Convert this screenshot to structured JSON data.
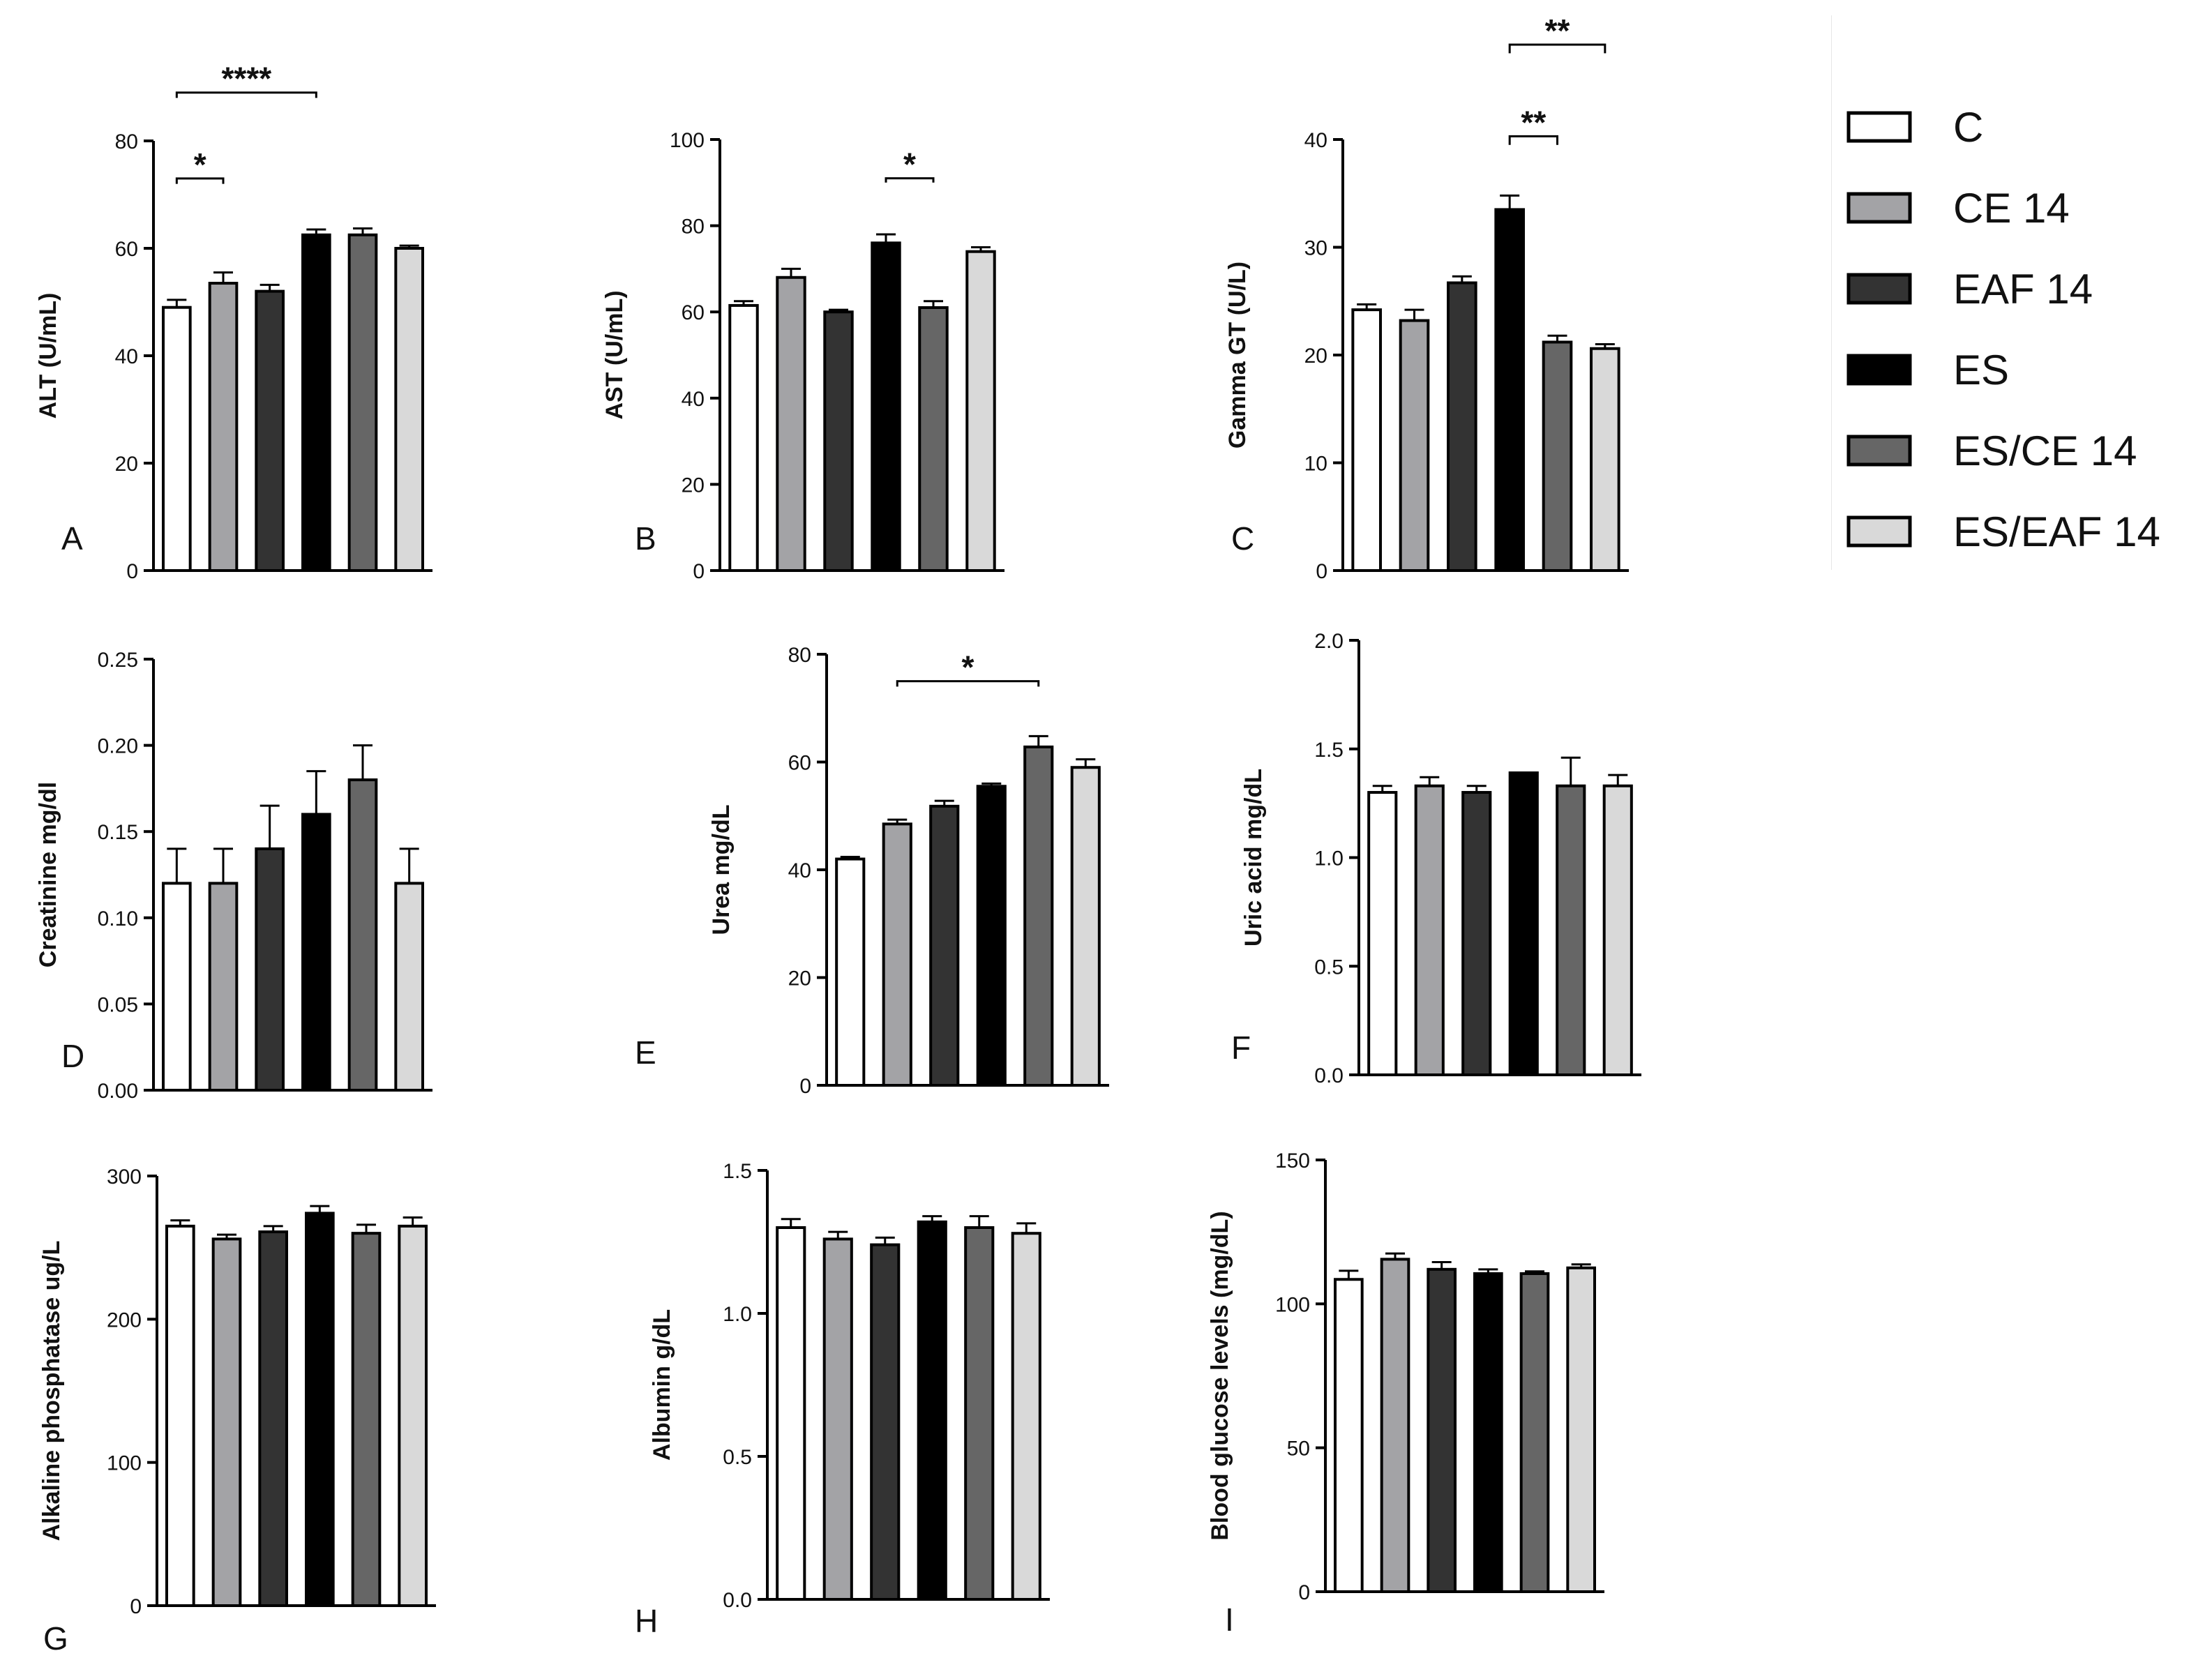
{
  "groups": [
    "C",
    "CE 14",
    "EAF 14",
    "ES",
    "ES/CE 14",
    "ES/EAF 14"
  ],
  "colors": {
    "C": "#ffffff",
    "CE 14": "#a3a3a6",
    "EAF 14": "#333333",
    "ES": "#000000",
    "ES/CE 14": "#666666",
    "ES/EAF 14": "#d9d9d9"
  },
  "chart_data": [
    {
      "panel": "A",
      "type": "bar",
      "ylabel": "ALT (U/mL)",
      "ylim": [
        0,
        80
      ],
      "yticks": [
        "0",
        "20",
        "40",
        "60",
        "80"
      ],
      "ytick_values": [
        0,
        20,
        40,
        60,
        80
      ],
      "values": [
        49,
        53.5,
        52,
        62.5,
        62.5,
        60
      ],
      "errors": [
        1.4,
        2,
        1.2,
        1,
        1.2,
        0.5
      ],
      "significance": [
        {
          "from": 0,
          "to": 1,
          "label": "*",
          "y": 72,
          "top": 73
        },
        {
          "from": 0,
          "to": 3,
          "label": "****",
          "y": 88,
          "top": 89
        }
      ]
    },
    {
      "panel": "B",
      "type": "bar",
      "ylabel": "AST (U/mL)",
      "ylim": [
        0,
        100
      ],
      "yticks": [
        "0",
        "20",
        "40",
        "60",
        "80",
        "100"
      ],
      "ytick_values": [
        0,
        20,
        40,
        60,
        80,
        100
      ],
      "values": [
        61.5,
        68,
        60,
        76,
        61,
        74
      ],
      "errors": [
        1,
        2,
        0.5,
        2,
        1.5,
        1
      ],
      "significance": [
        {
          "from": 3,
          "to": 4,
          "label": "*",
          "y": 90,
          "top": 91
        }
      ]
    },
    {
      "panel": "C",
      "type": "bar",
      "ylabel": "Gamma GT (U/L)",
      "ylim": [
        0,
        40
      ],
      "yticks": [
        "0",
        "10",
        "20",
        "30",
        "40"
      ],
      "ytick_values": [
        0,
        10,
        20,
        30,
        40
      ],
      "values": [
        24.2,
        23.2,
        26.7,
        33.5,
        21.2,
        20.6
      ],
      "errors": [
        0.5,
        1,
        0.6,
        1.3,
        0.6,
        0.4
      ],
      "significance": [
        {
          "from": 3,
          "to": 4,
          "label": "**",
          "y": 39.5,
          "top": 40.3
        },
        {
          "from": 3,
          "to": 5,
          "label": "**",
          "y": 48,
          "top": 48.8
        }
      ]
    },
    {
      "panel": "D",
      "type": "bar",
      "ylabel": "Creatinine mg/dl",
      "ylim": [
        0,
        0.25
      ],
      "yticks": [
        "0.00",
        "0.05",
        "0.10",
        "0.15",
        "0.20",
        "0.25"
      ],
      "ytick_values": [
        0,
        0.05,
        0.1,
        0.15,
        0.2,
        0.25
      ],
      "values": [
        0.12,
        0.12,
        0.14,
        0.16,
        0.18,
        0.12
      ],
      "errors": [
        0.02,
        0.02,
        0.025,
        0.025,
        0.02,
        0.02
      ],
      "significance": []
    },
    {
      "panel": "E",
      "type": "bar",
      "ylabel": "Urea mg/dL",
      "ylim": [
        0,
        80
      ],
      "yticks": [
        "0",
        "20",
        "40",
        "60",
        "80"
      ],
      "ytick_values": [
        0,
        20,
        40,
        60,
        80
      ],
      "values": [
        42,
        48.5,
        51.8,
        55.5,
        62.8,
        59
      ],
      "errors": [
        0.4,
        0.8,
        1,
        0.5,
        2,
        1.5
      ],
      "significance": [
        {
          "from": 1,
          "to": 4,
          "label": "*",
          "y": 74,
          "top": 75
        }
      ]
    },
    {
      "panel": "F",
      "type": "bar",
      "ylabel": "Uric acid mg/dL",
      "ylim": [
        0,
        2.0
      ],
      "yticks": [
        "0.0",
        "0.5",
        "1.0",
        "1.5",
        "2.0"
      ],
      "ytick_values": [
        0,
        0.5,
        1,
        1.5,
        2
      ],
      "values": [
        1.3,
        1.33,
        1.3,
        1.39,
        1.33,
        1.33
      ],
      "errors": [
        0.03,
        0.04,
        0.03,
        0,
        0.13,
        0.05
      ],
      "significance": []
    },
    {
      "panel": "G",
      "type": "bar",
      "ylabel": "Alkaline phosphatase ug/L",
      "ylim": [
        0,
        300
      ],
      "yticks": [
        "0",
        "100",
        "200",
        "300"
      ],
      "ytick_values": [
        0,
        100,
        200,
        300
      ],
      "values": [
        265,
        256,
        261,
        274,
        260,
        265
      ],
      "errors": [
        4,
        3,
        4,
        5,
        6,
        6
      ],
      "significance": []
    },
    {
      "panel": "H",
      "type": "bar",
      "ylabel": "Albumin g/dL",
      "ylim": [
        0,
        1.5
      ],
      "yticks": [
        "0.0",
        "0.5",
        "1.0",
        "1.5"
      ],
      "ytick_values": [
        0,
        0.5,
        1,
        1.5
      ],
      "values": [
        1.3,
        1.26,
        1.24,
        1.32,
        1.3,
        1.28
      ],
      "errors": [
        0.03,
        0.025,
        0.025,
        0.02,
        0.04,
        0.035
      ],
      "significance": []
    },
    {
      "panel": "I",
      "type": "bar",
      "ylabel": "Blood glucose levels (mg/dL)",
      "ylim": [
        0,
        150
      ],
      "yticks": [
        "0",
        "50",
        "100",
        "150"
      ],
      "ytick_values": [
        0,
        50,
        100,
        150
      ],
      "values": [
        108.5,
        115.5,
        112,
        110.5,
        110.5,
        112.5
      ],
      "errors": [
        3,
        2,
        2.5,
        1.5,
        0.8,
        1.2
      ],
      "significance": []
    }
  ]
}
